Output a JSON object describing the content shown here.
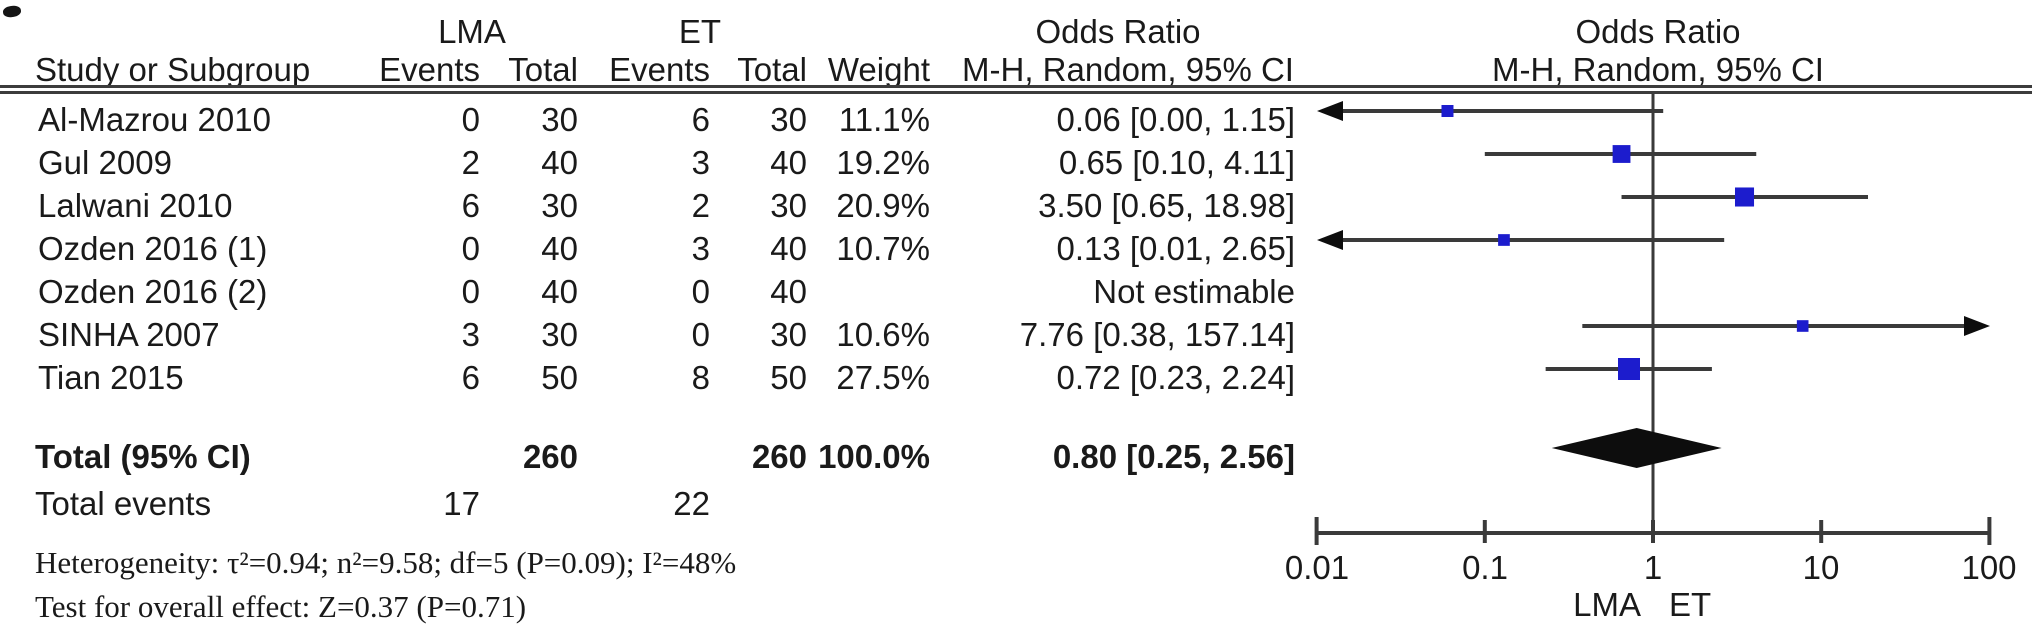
{
  "header": {
    "group1": "LMA",
    "group2": "ET",
    "or_left": "Odds Ratio",
    "or_right": "Odds Ratio",
    "method_left": "M-H, Random, 95% CI",
    "method_right": "M-H, Random, 95% CI"
  },
  "columns": {
    "study": "Study or Subgroup",
    "events": "Events",
    "total": "Total",
    "weight": "Weight"
  },
  "rows": [
    {
      "study": "Al-Mazrou 2010",
      "lma_events": "0",
      "lma_total": "30",
      "et_events": "6",
      "et_total": "30",
      "weight": "11.1%",
      "or_ci": "0.06 [0.00, 1.15]"
    },
    {
      "study": "Gul 2009",
      "lma_events": "2",
      "lma_total": "40",
      "et_events": "3",
      "et_total": "40",
      "weight": "19.2%",
      "or_ci": "0.65 [0.10, 4.11]"
    },
    {
      "study": "Lalwani 2010",
      "lma_events": "6",
      "lma_total": "30",
      "et_events": "2",
      "et_total": "30",
      "weight": "20.9%",
      "or_ci": "3.50 [0.65, 18.98]"
    },
    {
      "study": "Ozden 2016 (1)",
      "lma_events": "0",
      "lma_total": "40",
      "et_events": "3",
      "et_total": "40",
      "weight": "10.7%",
      "or_ci": "0.13 [0.01, 2.65]"
    },
    {
      "study": "Ozden 2016 (2)",
      "lma_events": "0",
      "lma_total": "40",
      "et_events": "0",
      "et_total": "40",
      "weight": "",
      "or_ci": "Not estimable"
    },
    {
      "study": "SINHA 2007",
      "lma_events": "3",
      "lma_total": "30",
      "et_events": "0",
      "et_total": "30",
      "weight": "10.6%",
      "or_ci": "7.76 [0.38, 157.14]"
    },
    {
      "study": "Tian 2015",
      "lma_events": "6",
      "lma_total": "50",
      "et_events": "8",
      "et_total": "50",
      "weight": "27.5%",
      "or_ci": "0.72 [0.23, 2.24]"
    }
  ],
  "totals": {
    "label": "Total (95% CI)",
    "lma_total": "260",
    "et_total": "260",
    "weight": "100.0%",
    "or_ci": "0.80 [0.25, 2.56]",
    "events_label": "Total events",
    "lma_events": "17",
    "et_events": "22"
  },
  "footer": {
    "heterogeneity": "Heterogeneity: τ²=0.94; n²=9.58; df=5 (P=0.09); I²=48%",
    "overall_effect": "Test for overall effect: Z=0.37 (P=0.71)"
  },
  "axis": {
    "ticks": [
      "0.01",
      "0.1",
      "1",
      "10",
      "100"
    ],
    "favours_left": "LMA",
    "favours_right": "ET"
  },
  "chart_data": {
    "type": "forest",
    "x_scale": "log10",
    "x_ticks": [
      0.01,
      0.1,
      1,
      10,
      100
    ],
    "x_range": [
      0.01,
      100
    ],
    "effect_measure": "Odds Ratio, M-H, Random, 95% CI",
    "studies": [
      {
        "name": "Al-Mazrou 2010",
        "or": 0.06,
        "ci_low": 0.0,
        "ci_high": 1.15,
        "weight_pct": 11.1
      },
      {
        "name": "Gul 2009",
        "or": 0.65,
        "ci_low": 0.1,
        "ci_high": 4.11,
        "weight_pct": 19.2
      },
      {
        "name": "Lalwani 2010",
        "or": 3.5,
        "ci_low": 0.65,
        "ci_high": 18.98,
        "weight_pct": 20.9
      },
      {
        "name": "Ozden 2016 (1)",
        "or": 0.13,
        "ci_low": 0.01,
        "ci_high": 2.65,
        "weight_pct": 10.7
      },
      {
        "name": "Ozden 2016 (2)",
        "or": null,
        "ci_low": null,
        "ci_high": null,
        "weight_pct": null,
        "not_estimable": true
      },
      {
        "name": "SINHA 2007",
        "or": 7.76,
        "ci_low": 0.38,
        "ci_high": 157.14,
        "weight_pct": 10.6
      },
      {
        "name": "Tian 2015",
        "or": 0.72,
        "ci_low": 0.23,
        "ci_high": 2.24,
        "weight_pct": 27.5
      }
    ],
    "total": {
      "or": 0.8,
      "ci_low": 0.25,
      "ci_high": 2.56,
      "weight_pct": 100.0
    },
    "marker_color": "#1c1ccd",
    "line_color": "#3a3a3a",
    "diamond_color": "#0d0d0d"
  }
}
